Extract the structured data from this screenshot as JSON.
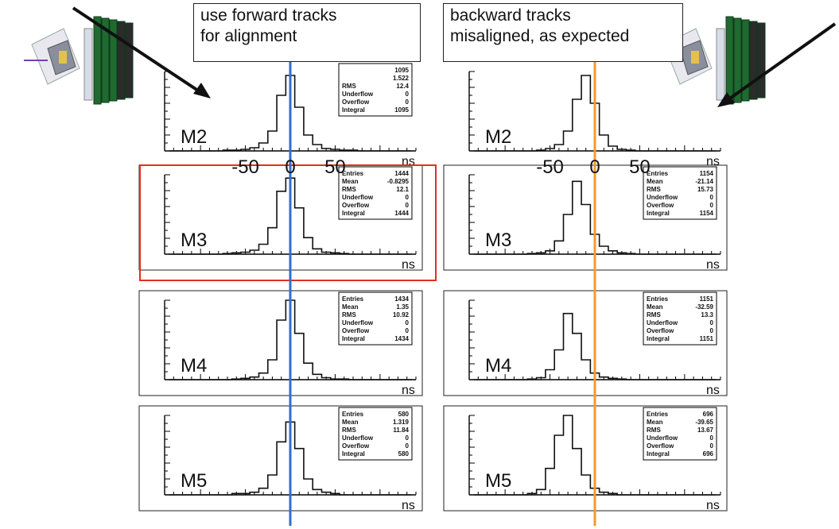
{
  "annotations": {
    "forward": [
      "use forward tracks",
      "for alignment"
    ],
    "backward": [
      "backward tracks",
      "misaligned, as expected"
    ]
  },
  "unit_label": "ns",
  "axis_callout_ticks": [
    "-50",
    "0",
    "50"
  ],
  "colors": {
    "forward_line": "#2f6fd0",
    "backward_line": "#f39a2e",
    "highlight_box": "#e0301e",
    "histogram": "#111111"
  },
  "icons": [
    "detector-forward-icon",
    "detector-backward-icon",
    "arrow-forward-icon",
    "arrow-backward-icon"
  ],
  "chart_data": [
    {
      "type": "histogram",
      "column": "forward",
      "station": "M2",
      "stats": [
        [
          "",
          "1095"
        ],
        [
          "",
          "1.522"
        ],
        [
          "RMS",
          "12.4"
        ],
        [
          "Underflow",
          "0"
        ],
        [
          "Overflow",
          "0"
        ],
        [
          "Integral",
          "1095"
        ]
      ],
      "x": [
        -130,
        -120,
        -110,
        -100,
        -90,
        -80,
        -70,
        -60,
        -50,
        -40,
        -30,
        -20,
        -10,
        0,
        10,
        20,
        30,
        40,
        50,
        60,
        70,
        80,
        90,
        100,
        110,
        120,
        130
      ],
      "counts": [
        0,
        0,
        0,
        0,
        0,
        0,
        1,
        1,
        2,
        4,
        10,
        25,
        70,
        95,
        55,
        20,
        8,
        3,
        2,
        1,
        1,
        0,
        0,
        0,
        0,
        0,
        0
      ],
      "ymax": 100,
      "xlim": [
        -140,
        140
      ],
      "marker_x": 0,
      "line_color": "#2f6fd0"
    },
    {
      "type": "histogram",
      "column": "backward",
      "station": "M2",
      "stats": [],
      "x": [
        -130,
        -120,
        -110,
        -100,
        -90,
        -80,
        -70,
        -60,
        -50,
        -40,
        -30,
        -20,
        -10,
        0,
        10,
        20,
        30,
        40,
        50,
        60,
        70,
        80,
        90,
        100,
        110,
        120,
        130
      ],
      "counts": [
        0,
        0,
        0,
        0,
        0,
        0,
        0,
        1,
        3,
        8,
        25,
        65,
        95,
        60,
        20,
        6,
        2,
        1,
        0,
        0,
        0,
        0,
        0,
        0,
        0,
        0,
        0
      ],
      "ymax": 100,
      "xlim": [
        -140,
        140
      ],
      "marker_x": 0,
      "line_color": "#f39a2e"
    },
    {
      "type": "histogram",
      "column": "forward",
      "station": "M3",
      "stats": [
        [
          "Entries",
          "1444"
        ],
        [
          "Mean",
          "-0.8295"
        ],
        [
          "RMS",
          "12.1"
        ],
        [
          "Underflow",
          "0"
        ],
        [
          "Overflow",
          "0"
        ],
        [
          "Integral",
          "1444"
        ]
      ],
      "x": [
        -130,
        -120,
        -110,
        -100,
        -90,
        -80,
        -70,
        -60,
        -50,
        -40,
        -30,
        -20,
        -10,
        0,
        10,
        20,
        30,
        40,
        50,
        60,
        70,
        80,
        90,
        100,
        110,
        120,
        130
      ],
      "counts": [
        0,
        0,
        0,
        0,
        0,
        0,
        1,
        2,
        3,
        6,
        15,
        40,
        95,
        115,
        70,
        25,
        8,
        3,
        2,
        1,
        0,
        0,
        0,
        0,
        0,
        0,
        0
      ],
      "ymax": 120,
      "xlim": [
        -140,
        140
      ],
      "marker_x": 0,
      "line_color": "#2f6fd0"
    },
    {
      "type": "histogram",
      "column": "backward",
      "station": "M3",
      "stats": [
        [
          "Entries",
          "1154"
        ],
        [
          "Mean",
          "-21.14"
        ],
        [
          "RMS",
          "15.73"
        ],
        [
          "Underflow",
          "0"
        ],
        [
          "Overflow",
          "0"
        ],
        [
          "Integral",
          "1154"
        ]
      ],
      "x": [
        -130,
        -120,
        -110,
        -100,
        -90,
        -80,
        -70,
        -60,
        -50,
        -40,
        -30,
        -20,
        -10,
        0,
        10,
        20,
        30,
        40,
        50,
        60,
        70,
        80,
        90,
        100,
        110,
        120,
        130
      ],
      "counts": [
        0,
        0,
        0,
        0,
        0,
        0,
        1,
        2,
        5,
        20,
        60,
        110,
        75,
        30,
        12,
        5,
        2,
        1,
        0,
        0,
        0,
        0,
        0,
        0,
        0,
        0,
        0
      ],
      "ymax": 120,
      "xlim": [
        -140,
        140
      ],
      "marker_x": 0,
      "line_color": "#f39a2e"
    },
    {
      "type": "histogram",
      "column": "forward",
      "station": "M4",
      "stats": [
        [
          "Entries",
          "1434"
        ],
        [
          "Mean",
          "1.35"
        ],
        [
          "RMS",
          "10.92"
        ],
        [
          "Underflow",
          "0"
        ],
        [
          "Overflow",
          "0"
        ],
        [
          "Integral",
          "1434"
        ]
      ],
      "x": [
        -130,
        -120,
        -110,
        -100,
        -90,
        -80,
        -70,
        -60,
        -50,
        -40,
        -30,
        -20,
        -10,
        0,
        10,
        20,
        30,
        40,
        50,
        60,
        70,
        80,
        90,
        100,
        110,
        120,
        130
      ],
      "counts": [
        0,
        0,
        0,
        0,
        0,
        0,
        0,
        1,
        2,
        4,
        10,
        30,
        90,
        120,
        70,
        25,
        8,
        3,
        1,
        1,
        0,
        0,
        0,
        0,
        0,
        0,
        0
      ],
      "ymax": 120,
      "xlim": [
        -140,
        140
      ],
      "marker_x": 0,
      "line_color": "#2f6fd0"
    },
    {
      "type": "histogram",
      "column": "backward",
      "station": "M4",
      "stats": [
        [
          "Entries",
          "1151"
        ],
        [
          "Mean",
          "-32.59"
        ],
        [
          "RMS",
          "13.3"
        ],
        [
          "Underflow",
          "0"
        ],
        [
          "Overflow",
          "0"
        ],
        [
          "Integral",
          "1151"
        ]
      ],
      "x": [
        -130,
        -120,
        -110,
        -100,
        -90,
        -80,
        -70,
        -60,
        -50,
        -40,
        -30,
        -20,
        -10,
        0,
        10,
        20,
        30,
        40,
        50,
        60,
        70,
        80,
        90,
        100,
        110,
        120,
        130
      ],
      "counts": [
        0,
        0,
        0,
        0,
        0,
        0,
        1,
        3,
        15,
        45,
        100,
        70,
        30,
        10,
        4,
        2,
        1,
        0,
        0,
        0,
        0,
        0,
        0,
        0,
        0,
        0,
        0
      ],
      "ymax": 120,
      "xlim": [
        -140,
        140
      ],
      "marker_x": 0,
      "line_color": "#f39a2e"
    },
    {
      "type": "histogram",
      "column": "forward",
      "station": "M5",
      "stats": [
        [
          "Entries",
          "580"
        ],
        [
          "Mean",
          "1.319"
        ],
        [
          "RMS",
          "11.84"
        ],
        [
          "Underflow",
          "0"
        ],
        [
          "Overflow",
          "0"
        ],
        [
          "Integral",
          "580"
        ]
      ],
      "x": [
        -130,
        -120,
        -110,
        -100,
        -90,
        -80,
        -70,
        -60,
        -50,
        -40,
        -30,
        -20,
        -10,
        0,
        10,
        20,
        30,
        40,
        50,
        60,
        70,
        80,
        90,
        100,
        110,
        120,
        130
      ],
      "counts": [
        0,
        0,
        0,
        0,
        0,
        0,
        0,
        1,
        1,
        2,
        5,
        15,
        40,
        55,
        35,
        12,
        4,
        2,
        1,
        0,
        0,
        0,
        0,
        0,
        0,
        0,
        0
      ],
      "ymax": 60,
      "xlim": [
        -140,
        140
      ],
      "marker_x": 0,
      "line_color": "#2f6fd0"
    },
    {
      "type": "histogram",
      "column": "backward",
      "station": "M5",
      "stats": [
        [
          "Entries",
          "696"
        ],
        [
          "Mean",
          "-39.65"
        ],
        [
          "RMS",
          "13.67"
        ],
        [
          "Underflow",
          "0"
        ],
        [
          "Overflow",
          "0"
        ],
        [
          "Integral",
          "696"
        ]
      ],
      "x": [
        -130,
        -120,
        -110,
        -100,
        -90,
        -80,
        -70,
        -60,
        -50,
        -40,
        -30,
        -20,
        -10,
        0,
        10,
        20,
        30,
        40,
        50,
        60,
        70,
        80,
        90,
        100,
        110,
        120,
        130
      ],
      "counts": [
        0,
        0,
        0,
        0,
        0,
        0,
        1,
        4,
        20,
        45,
        60,
        35,
        15,
        5,
        2,
        1,
        0,
        0,
        0,
        0,
        0,
        0,
        0,
        0,
        0,
        0,
        0
      ],
      "ymax": 60,
      "xlim": [
        -140,
        140
      ],
      "marker_x": 0,
      "line_color": "#f39a2e"
    }
  ]
}
